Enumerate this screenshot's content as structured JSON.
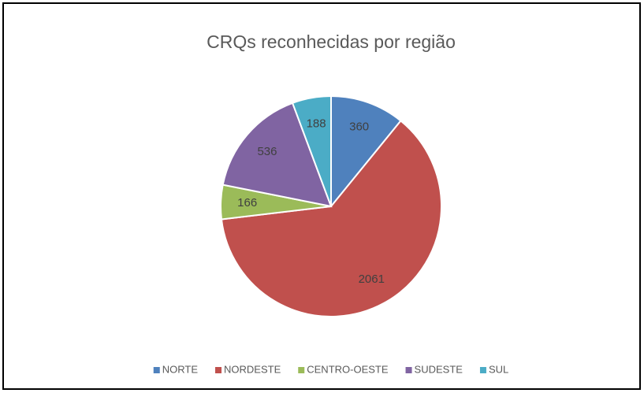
{
  "chart_data": {
    "type": "pie",
    "title": "CRQs reconhecidas por região",
    "categories": [
      "NORTE",
      "NORDESTE",
      "CENTRO-OESTE",
      "SUDESTE",
      "SUL"
    ],
    "values": [
      360,
      2061,
      166,
      536,
      188
    ],
    "colors": [
      "#4f81bd",
      "#c0504d",
      "#9bbb59",
      "#8064a2",
      "#4bacc6"
    ],
    "legend": "bottom"
  }
}
